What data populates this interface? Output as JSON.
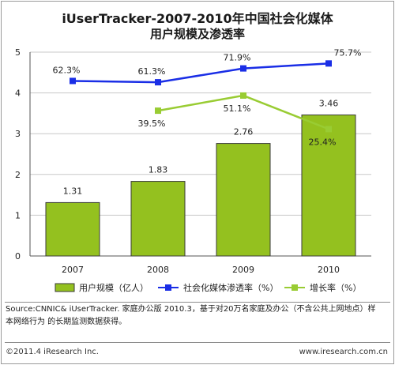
{
  "chart_data": {
    "type": "bar",
    "title": "iUserTracker-2007-2010年中国社会化媒体",
    "subtitle": "用户规模及渗透率",
    "categories": [
      "2007",
      "2008",
      "2009",
      "2010"
    ],
    "ylim": [
      0,
      5
    ],
    "yticks": [
      "0",
      "1",
      "2",
      "3",
      "4",
      "5"
    ],
    "grid": true,
    "legend_position": "bottom",
    "series": [
      {
        "name": "用户规模（亿人）",
        "kind": "bar",
        "color": "#94c11f",
        "values": [
          1.31,
          1.83,
          2.76,
          3.46
        ],
        "labels": [
          "1.31",
          "1.83",
          "2.76",
          "3.46"
        ]
      },
      {
        "name": "社会化媒体渗透率（%）",
        "kind": "line",
        "color": "#1a2ee6",
        "values": [
          62.3,
          61.3,
          71.9,
          75.7
        ],
        "labels": [
          "62.3%",
          "61.3%",
          "71.9%",
          "75.7%"
        ]
      },
      {
        "name": "增长率（%）",
        "kind": "line",
        "color": "#99cc33",
        "values": [
          null,
          39.5,
          51.1,
          25.4
        ],
        "labels": [
          "",
          "39.5%",
          "51.1%",
          "25.4%"
        ]
      }
    ]
  },
  "source": {
    "line1": "Source:CNNIC& iUserTracker. 家庭办公版 2010.3，基于对20万名家庭及办公（不含公共上网地点）样",
    "line2": "本网络行为 的长期监测数据获得。"
  },
  "footer": {
    "copyright": "©2011.4 iResearch Inc.",
    "website": "www.iresearch.com.cn"
  }
}
